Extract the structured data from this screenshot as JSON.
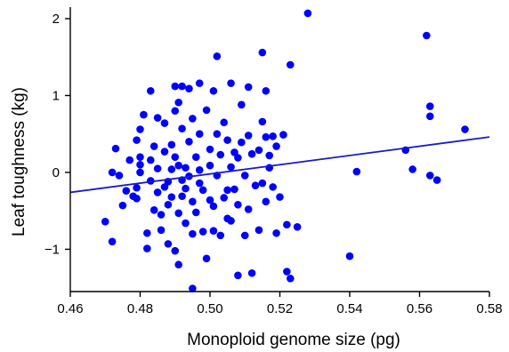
{
  "chart_data": {
    "type": "scatter",
    "title": "",
    "xlabel": "Monoploid genome size (pg)",
    "ylabel": "Leaf toughness (kg)",
    "xlim": [
      0.46,
      0.58
    ],
    "ylim": [
      -1.55,
      2.15
    ],
    "xticks": [
      0.46,
      0.48,
      0.5,
      0.52,
      0.54,
      0.56,
      0.58
    ],
    "xtick_labels": [
      "0.46",
      "0.48",
      "0.50",
      "0.52",
      "0.54",
      "0.56",
      "0.58"
    ],
    "yticks": [
      -1,
      0,
      1,
      2
    ],
    "ytick_labels": [
      "−1",
      "0",
      "1",
      "2"
    ],
    "grid": false,
    "legend": "none",
    "point_color": "#0000ff",
    "trend_line_color": "#1a1acc",
    "series": [
      {
        "points": [
          [
            0.47,
            -0.64
          ],
          [
            0.472,
            -0.9
          ],
          [
            0.472,
            0.0
          ],
          [
            0.473,
            0.31
          ],
          [
            0.474,
            -0.04
          ],
          [
            0.475,
            -0.43
          ],
          [
            0.476,
            -0.24
          ],
          [
            0.477,
            0.16
          ],
          [
            0.478,
            -0.31
          ],
          [
            0.479,
            -0.2
          ],
          [
            0.479,
            -0.34
          ],
          [
            0.479,
            0.42
          ],
          [
            0.48,
            0.2
          ],
          [
            0.48,
            0.1
          ],
          [
            0.48,
            0.0
          ],
          [
            0.48,
            0.56
          ],
          [
            0.481,
            0.75
          ],
          [
            0.482,
            -0.99
          ],
          [
            0.482,
            -0.79
          ],
          [
            0.483,
            0.16
          ],
          [
            0.483,
            -0.11
          ],
          [
            0.483,
            1.06
          ],
          [
            0.484,
            0.34
          ],
          [
            0.484,
            -0.49
          ],
          [
            0.485,
            0.71
          ],
          [
            0.485,
            0.05
          ],
          [
            0.485,
            -0.26
          ],
          [
            0.486,
            -0.55
          ],
          [
            0.486,
            -0.75
          ],
          [
            0.487,
            -0.19
          ],
          [
            0.487,
            0.64
          ],
          [
            0.487,
            0.27
          ],
          [
            0.488,
            -0.93
          ],
          [
            0.488,
            -0.12
          ],
          [
            0.488,
            -0.42
          ],
          [
            0.489,
            0.04
          ],
          [
            0.489,
            0.36
          ],
          [
            0.489,
            -0.32
          ],
          [
            0.49,
            0.2
          ],
          [
            0.49,
            0.8
          ],
          [
            0.49,
            1.12
          ],
          [
            0.49,
            -1.02
          ],
          [
            0.491,
            -0.53
          ],
          [
            0.491,
            -1.2
          ],
          [
            0.491,
            0.91
          ],
          [
            0.491,
            0.09
          ],
          [
            0.492,
            -0.1
          ],
          [
            0.492,
            -0.31
          ],
          [
            0.492,
            0.57
          ],
          [
            0.492,
            1.12
          ],
          [
            0.493,
            -0.66
          ],
          [
            0.493,
            0.06
          ],
          [
            0.493,
            -0.21
          ],
          [
            0.494,
            0.4
          ],
          [
            0.494,
            -0.05
          ],
          [
            0.494,
            1.09
          ],
          [
            0.495,
            -0.38
          ],
          [
            0.495,
            -1.51
          ],
          [
            0.495,
            0.7
          ],
          [
            0.495,
            -0.8
          ],
          [
            0.496,
            0.2
          ],
          [
            0.496,
            -0.52
          ],
          [
            0.497,
            0.03
          ],
          [
            0.497,
            0.5
          ],
          [
            0.497,
            1.16
          ],
          [
            0.497,
            -0.14
          ],
          [
            0.498,
            -0.77
          ],
          [
            0.498,
            -0.23
          ],
          [
            0.499,
            0.81
          ],
          [
            0.499,
            -1.12
          ],
          [
            0.5,
            0.3
          ],
          [
            0.5,
            -0.36
          ],
          [
            0.5,
            0.09
          ],
          [
            0.501,
            -0.44
          ],
          [
            0.501,
            1.06
          ],
          [
            0.501,
            -0.76
          ],
          [
            0.502,
            0.5
          ],
          [
            0.502,
            -0.04
          ],
          [
            0.502,
            1.51
          ],
          [
            0.503,
            -0.82
          ],
          [
            0.503,
            0.23
          ],
          [
            0.504,
            0.65
          ],
          [
            0.504,
            -0.33
          ],
          [
            0.505,
            -0.23
          ],
          [
            0.505,
            0.42
          ],
          [
            0.505,
            -0.6
          ],
          [
            0.506,
            1.16
          ],
          [
            0.506,
            0.07
          ],
          [
            0.506,
            -0.63
          ],
          [
            0.507,
            0.26
          ],
          [
            0.507,
            -0.22
          ],
          [
            0.508,
            0.19
          ],
          [
            0.508,
            -1.34
          ],
          [
            0.508,
            -0.42
          ],
          [
            0.509,
            0.39
          ],
          [
            0.509,
            0.88
          ],
          [
            0.51,
            -0.04
          ],
          [
            0.51,
            -0.82
          ],
          [
            0.511,
            0.48
          ],
          [
            0.511,
            -0.48
          ],
          [
            0.511,
            1.11
          ],
          [
            0.512,
            -1.31
          ],
          [
            0.512,
            0.24
          ],
          [
            0.513,
            -0.17
          ],
          [
            0.514,
            -0.75
          ],
          [
            0.514,
            0.29
          ],
          [
            0.515,
            0.66
          ],
          [
            0.515,
            1.56
          ],
          [
            0.515,
            -0.14
          ],
          [
            0.516,
            -0.38
          ],
          [
            0.516,
            0.46
          ],
          [
            0.516,
            1.06
          ],
          [
            0.517,
            0.06
          ],
          [
            0.517,
            0.22
          ],
          [
            0.518,
            0.47
          ],
          [
            0.518,
            -0.19
          ],
          [
            0.519,
            -0.79
          ],
          [
            0.519,
            0.34
          ],
          [
            0.52,
            -0.32
          ],
          [
            0.521,
            0.49
          ],
          [
            0.522,
            -1.29
          ],
          [
            0.522,
            -0.68
          ],
          [
            0.523,
            -1.38
          ],
          [
            0.523,
            1.4
          ],
          [
            0.525,
            -0.71
          ],
          [
            0.528,
            2.07
          ],
          [
            0.54,
            -1.09
          ],
          [
            0.542,
            0.01
          ],
          [
            0.556,
            0.29
          ],
          [
            0.558,
            0.04
          ],
          [
            0.562,
            1.78
          ],
          [
            0.563,
            0.86
          ],
          [
            0.563,
            0.73
          ],
          [
            0.563,
            -0.04
          ],
          [
            0.565,
            -0.1
          ],
          [
            0.573,
            0.56
          ]
        ]
      }
    ],
    "trend_line": {
      "x": [
        0.46,
        0.58
      ],
      "y": [
        -0.26,
        0.46
      ]
    }
  }
}
